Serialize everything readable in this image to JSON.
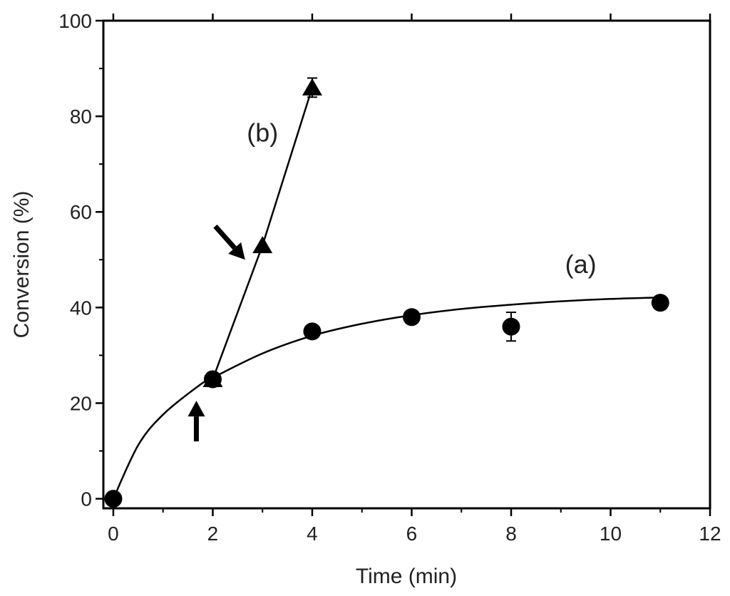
{
  "chart_data": {
    "type": "scatter",
    "title": "",
    "xlabel": "Time (min)",
    "ylabel": "Conversion (%)",
    "xlim": [
      -0.2,
      12
    ],
    "ylim": [
      -2,
      100
    ],
    "xticks": [
      0,
      2,
      4,
      6,
      8,
      10,
      12
    ],
    "yticks": [
      0,
      20,
      40,
      60,
      80,
      100
    ],
    "grid": false,
    "series": [
      {
        "name": "(a)",
        "marker": "circle",
        "x": [
          0,
          2,
          4,
          6,
          8,
          11
        ],
        "y": [
          0,
          25,
          35,
          38,
          36,
          41
        ],
        "yerr": [
          0,
          0,
          0,
          0,
          3,
          0
        ],
        "fit": "smooth saturating curve",
        "fit_curve": [
          [
            0,
            0
          ],
          [
            0.5,
            11.2
          ],
          [
            1,
            17.6
          ],
          [
            1.7,
            23.5
          ],
          [
            2,
            25.3
          ],
          [
            3,
            30.4
          ],
          [
            4,
            34.1
          ],
          [
            5,
            36.6
          ],
          [
            6,
            38.4
          ],
          [
            7,
            39.7
          ],
          [
            8,
            40.6
          ],
          [
            9,
            41.3
          ],
          [
            10,
            41.8
          ],
          [
            11,
            42.1
          ]
        ]
      },
      {
        "name": "(b)",
        "marker": "triangle",
        "x": [
          2,
          3,
          4
        ],
        "y": [
          25,
          53,
          86
        ],
        "yerr": [
          0,
          0,
          2
        ],
        "fit": "straight segment",
        "fit_curve": [
          [
            2,
            25
          ],
          [
            3,
            53
          ],
          [
            4,
            86
          ]
        ]
      }
    ],
    "annotations": [
      {
        "text": "(a)",
        "x": 9.4,
        "y": 49
      },
      {
        "text": "(b)",
        "x": 3.0,
        "y": 76.5
      }
    ],
    "arrows": [
      {
        "name": "up-arrow",
        "from": [
          1.67,
          12
        ],
        "to": [
          1.67,
          20.5
        ]
      },
      {
        "name": "down-right-arrow",
        "from": [
          2.05,
          57
        ],
        "to": [
          2.65,
          50
        ]
      }
    ]
  }
}
